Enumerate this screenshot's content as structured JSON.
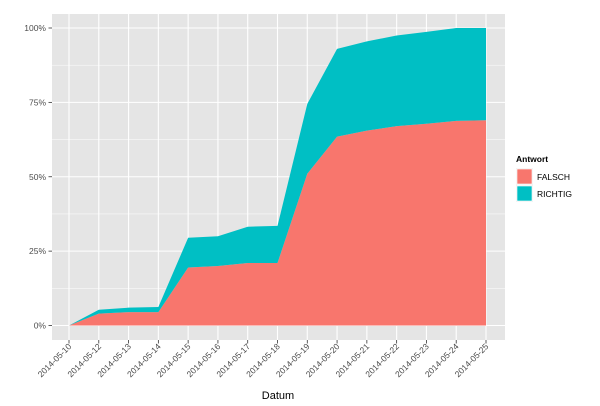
{
  "chart_data": {
    "type": "area",
    "stacked": true,
    "xlabel": "Datum",
    "ylabel": "",
    "ylim": [
      0,
      1
    ],
    "y_ticks": [
      "0%",
      "25%",
      "50%",
      "75%",
      "100%"
    ],
    "x": [
      "2014-05-10",
      "2014-05-12",
      "2014-05-13",
      "2014-05-14",
      "2014-05-15",
      "2014-05-16",
      "2014-05-17",
      "2014-05-18",
      "2014-05-19",
      "2014-05-20",
      "2014-05-21",
      "2014-05-22",
      "2014-05-23",
      "2014-05-24",
      "2014-05-25"
    ],
    "legend": {
      "title": "Antwort",
      "position": "right"
    },
    "series": [
      {
        "name": "FALSCH",
        "color": "#F8766D",
        "values": [
          0.0,
          0.04,
          0.045,
          0.045,
          0.195,
          0.2,
          0.21,
          0.21,
          0.51,
          0.635,
          0.655,
          0.67,
          0.678,
          0.688,
          0.69
        ]
      },
      {
        "name": "RICHTIG",
        "color": "#00BFC4",
        "values": [
          0.0,
          0.013,
          0.015,
          0.017,
          0.1,
          0.1,
          0.122,
          0.125,
          0.235,
          0.295,
          0.3,
          0.305,
          0.309,
          0.312,
          0.31
        ]
      }
    ],
    "grid": true,
    "panel_background": "#E5E5E5",
    "grid_color": "#FFFFFF"
  }
}
